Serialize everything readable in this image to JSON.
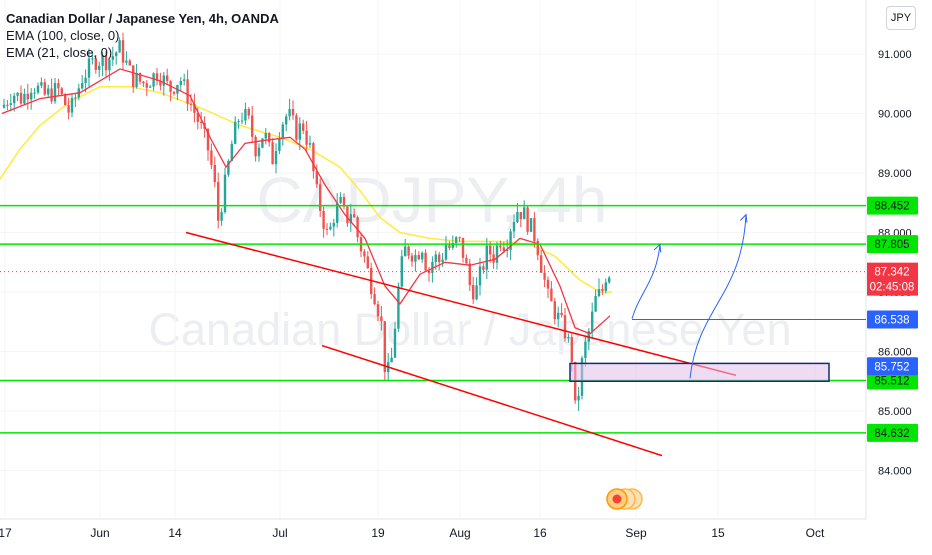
{
  "legend": {
    "title": "Canadian Dollar / Japanese Yen, 4h, OANDA",
    "ema_slow": "EMA (100, close, 0)",
    "ema_fast": "EMA (21, close, 0)"
  },
  "currency_badge": "JPY",
  "watermark": {
    "symbol": "CADJPY, 4h",
    "name": "Canadian Dollar / Japanese Yen"
  },
  "colors": {
    "up": "#26a69a",
    "down": "#ef5350",
    "ema_fast": "#f23645",
    "ema_slow": "#ffeb3b",
    "support_line": "#00e600",
    "channel_line": "#ff0000",
    "projection": "#2962ff",
    "last_price": "#f23645"
  },
  "chart_data": {
    "type": "candlestick",
    "symbol": "CADJPY",
    "timeframe": "4h",
    "ylim": [
      83.7,
      91.4
    ],
    "yticks": [
      84.0,
      85.0,
      86.0,
      87.0,
      88.0,
      89.0,
      90.0,
      91.0
    ],
    "ytick_labels": [
      "84.000",
      "85.000",
      "86.000",
      "87.000",
      "88.000",
      "89.000",
      "90.000",
      "91.000"
    ],
    "xticks": [
      {
        "label": "17",
        "x": 5
      },
      {
        "label": "Jun",
        "x": 100
      },
      {
        "label": "14",
        "x": 175
      },
      {
        "label": "Jul",
        "x": 280
      },
      {
        "label": "19",
        "x": 378
      },
      {
        "label": "Aug",
        "x": 460
      },
      {
        "label": "16",
        "x": 540
      },
      {
        "label": "Sep",
        "x": 636
      },
      {
        "label": "15",
        "x": 718
      },
      {
        "label": "Oct",
        "x": 815
      }
    ],
    "horizontal_levels": [
      {
        "price": 88.452,
        "label": "88.452",
        "color": "#00e600"
      },
      {
        "price": 87.805,
        "label": "87.805",
        "color": "#00e600"
      },
      {
        "price": 85.512,
        "label": "85.512",
        "color": "#00e600"
      },
      {
        "price": 84.632,
        "label": "84.632",
        "color": "#00e600"
      }
    ],
    "last_price": {
      "price": 87.342,
      "label": "87.342",
      "countdown": "02:45:08"
    },
    "projection_levels": [
      {
        "price": 86.538,
        "label": "86.538"
      },
      {
        "price": 85.752,
        "label": "85.752"
      }
    ],
    "close_path": [
      [
        2,
        90.1
      ],
      [
        12,
        90.35
      ],
      [
        22,
        90.25
      ],
      [
        32,
        90.5
      ],
      [
        45,
        90.3
      ],
      [
        58,
        90.4
      ],
      [
        70,
        90.0
      ],
      [
        82,
        90.6
      ],
      [
        95,
        90.9
      ],
      [
        108,
        90.9
      ],
      [
        120,
        91.1
      ],
      [
        132,
        90.6
      ],
      [
        145,
        90.5
      ],
      [
        158,
        90.7
      ],
      [
        170,
        90.4
      ],
      [
        180,
        90.6
      ],
      [
        190,
        90.2
      ],
      [
        200,
        89.8
      ],
      [
        208,
        89.4
      ],
      [
        214,
        88.9
      ],
      [
        218,
        88.2
      ],
      [
        224,
        88.7
      ],
      [
        232,
        89.5
      ],
      [
        240,
        90.0
      ],
      [
        248,
        89.9
      ],
      [
        256,
        89.4
      ],
      [
        264,
        89.7
      ],
      [
        272,
        89.2
      ],
      [
        280,
        89.8
      ],
      [
        288,
        90.0
      ],
      [
        296,
        89.7
      ],
      [
        303,
        89.8
      ],
      [
        310,
        89.4
      ],
      [
        316,
        88.7
      ],
      [
        322,
        88.3
      ],
      [
        328,
        87.9
      ],
      [
        334,
        88.3
      ],
      [
        340,
        88.5
      ],
      [
        346,
        88.2
      ],
      [
        352,
        88.4
      ],
      [
        358,
        87.9
      ],
      [
        364,
        87.6
      ],
      [
        370,
        87.2
      ],
      [
        376,
        86.9
      ],
      [
        382,
        86.4
      ],
      [
        386,
        85.5
      ],
      [
        392,
        85.9
      ],
      [
        398,
        87.0
      ],
      [
        404,
        87.7
      ],
      [
        410,
        87.7
      ],
      [
        416,
        87.6
      ],
      [
        422,
        87.8
      ],
      [
        428,
        87.3
      ],
      [
        434,
        87.6
      ],
      [
        440,
        87.5
      ],
      [
        446,
        87.8
      ],
      [
        452,
        87.7
      ],
      [
        458,
        87.9
      ],
      [
        464,
        87.6
      ],
      [
        470,
        87.1
      ],
      [
        476,
        87.0
      ],
      [
        482,
        87.4
      ],
      [
        488,
        87.7
      ],
      [
        494,
        87.6
      ],
      [
        500,
        87.9
      ],
      [
        506,
        87.8
      ],
      [
        512,
        88.2
      ],
      [
        518,
        88.4
      ],
      [
        524,
        88.3
      ],
      [
        530,
        88.1
      ],
      [
        536,
        87.9
      ],
      [
        542,
        87.4
      ],
      [
        548,
        86.9
      ],
      [
        554,
        86.7
      ],
      [
        560,
        86.5
      ],
      [
        566,
        86.3
      ],
      [
        572,
        85.9
      ],
      [
        576,
        84.8
      ],
      [
        580,
        85.6
      ],
      [
        584,
        86.0
      ],
      [
        590,
        86.4
      ],
      [
        596,
        86.9
      ],
      [
        602,
        87.0
      ],
      [
        606,
        87.3
      ],
      [
        610,
        87.34
      ]
    ],
    "ema21_path": [
      [
        2,
        90.0
      ],
      [
        40,
        90.25
      ],
      [
        80,
        90.35
      ],
      [
        120,
        90.75
      ],
      [
        160,
        90.55
      ],
      [
        190,
        90.3
      ],
      [
        210,
        89.6
      ],
      [
        226,
        89.1
      ],
      [
        245,
        89.5
      ],
      [
        265,
        89.55
      ],
      [
        290,
        89.6
      ],
      [
        305,
        89.4
      ],
      [
        325,
        88.8
      ],
      [
        345,
        88.3
      ],
      [
        365,
        87.9
      ],
      [
        385,
        87.1
      ],
      [
        400,
        86.8
      ],
      [
        420,
        87.3
      ],
      [
        445,
        87.5
      ],
      [
        470,
        87.45
      ],
      [
        495,
        87.55
      ],
      [
        520,
        87.9
      ],
      [
        540,
        87.8
      ],
      [
        560,
        87.1
      ],
      [
        575,
        86.4
      ],
      [
        590,
        86.3
      ],
      [
        610,
        86.6
      ]
    ],
    "ema100_path": [
      [
        0,
        88.9
      ],
      [
        20,
        89.4
      ],
      [
        40,
        89.8
      ],
      [
        70,
        90.2
      ],
      [
        100,
        90.45
      ],
      [
        130,
        90.45
      ],
      [
        160,
        90.35
      ],
      [
        200,
        90.1
      ],
      [
        240,
        89.8
      ],
      [
        280,
        89.6
      ],
      [
        310,
        89.4
      ],
      [
        340,
        89.1
      ],
      [
        360,
        88.7
      ],
      [
        380,
        88.25
      ],
      [
        400,
        88.0
      ],
      [
        430,
        87.9
      ],
      [
        460,
        87.85
      ],
      [
        500,
        87.85
      ],
      [
        530,
        87.8
      ],
      [
        555,
        87.6
      ],
      [
        580,
        87.2
      ],
      [
        600,
        87.0
      ],
      [
        612,
        87.0
      ]
    ],
    "channel_lines": [
      {
        "from": [
          186,
          88.0
        ],
        "to": [
          736,
          85.6
        ]
      },
      {
        "from": [
          322,
          86.1
        ],
        "to": [
          662,
          84.25
        ]
      }
    ],
    "projection_arrows": [
      {
        "from": [
          632,
          86.55
        ],
        "to": [
          660,
          87.8
        ]
      },
      {
        "from": [
          690,
          85.55
        ],
        "to": [
          746,
          88.3
        ]
      }
    ],
    "zone": {
      "x1": 570,
      "x2": 829,
      "top": 85.8,
      "bottom": 85.5
    }
  }
}
